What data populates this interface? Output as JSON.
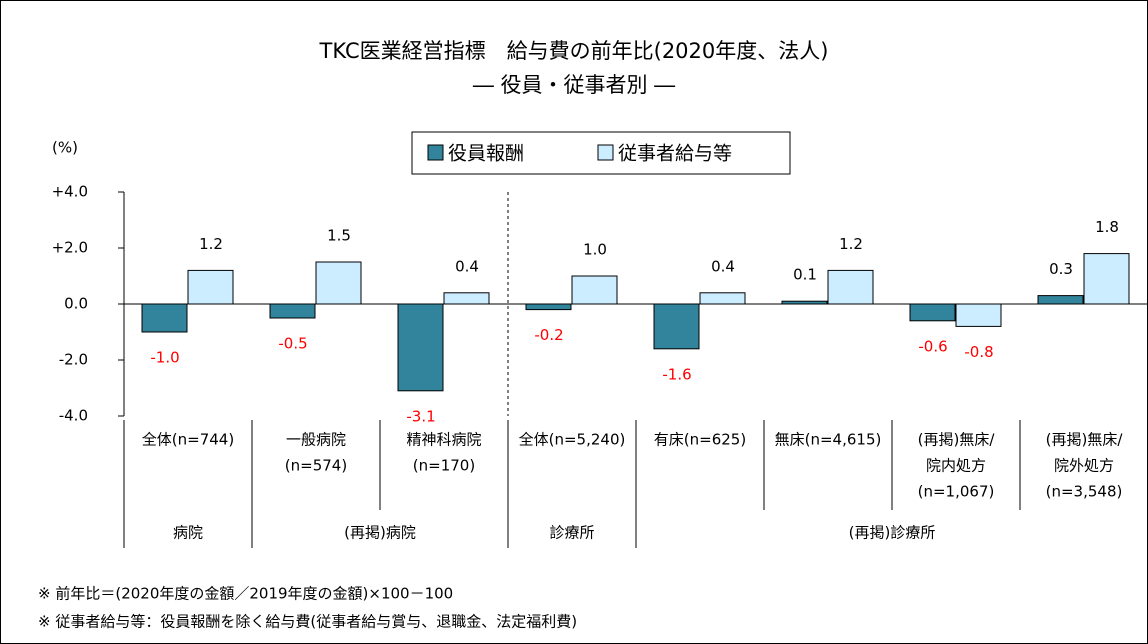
{
  "chart_data": {
    "type": "bar",
    "title": "TKC医業経営指標　給与費の前年比(2020年度、法人)",
    "subtitle": "― 役員・従事者別 ―",
    "y_label": "(%)",
    "categories": [
      [
        "全体(n=744)"
      ],
      [
        "一般病院",
        "(n=574)"
      ],
      [
        "精神科病院",
        "(n=170)"
      ],
      [
        "全体(n=5,240)"
      ],
      [
        "有床(n=625)"
      ],
      [
        "無床(n=4,615)"
      ],
      [
        "(再掲)無床/",
        "院内処方",
        "(n=1,067)"
      ],
      [
        "(再掲)無床/",
        "院外処方",
        "(n=3,548)"
      ]
    ],
    "groups": [
      "病院",
      "(再掲)病院",
      "診療所",
      "(再掲)診療所"
    ],
    "series": [
      {
        "name": "役員報酬",
        "color": "#31849b",
        "values": [
          -1.0,
          -0.5,
          -3.1,
          -0.2,
          -1.6,
          0.1,
          -0.6,
          0.3
        ],
        "value_labels": [
          "-1.0",
          "-0.5",
          "-3.1",
          "-0.2",
          "-1.6",
          "0.1",
          "-0.6",
          "0.3"
        ]
      },
      {
        "name": "従事者給与等",
        "color": "#ccecff",
        "values": [
          1.2,
          1.5,
          0.4,
          1.0,
          0.4,
          1.2,
          -0.8,
          1.8
        ],
        "value_labels": [
          "1.2",
          "1.5",
          "0.4",
          "1.0",
          "0.4",
          "1.2",
          "-0.8",
          "1.8"
        ]
      }
    ],
    "negative_label_color": "#ff0000",
    "ylim": [
      -4,
      4
    ],
    "yticks": [
      {
        "value": 4,
        "label": "+4.0"
      },
      {
        "value": 2,
        "label": "+2.0"
      },
      {
        "value": 0,
        "label": "0.0"
      },
      {
        "value": -2,
        "label": "-2.0"
      },
      {
        "value": -4,
        "label": "-4.0"
      }
    ],
    "notes": [
      "※ 前年比＝(2020年度の金額／2019年度の金額)×100－100",
      "※ 従事者給与等：役員報酬を除く給与費(従事者給与賞与、退職金、法定福利費)"
    ]
  }
}
